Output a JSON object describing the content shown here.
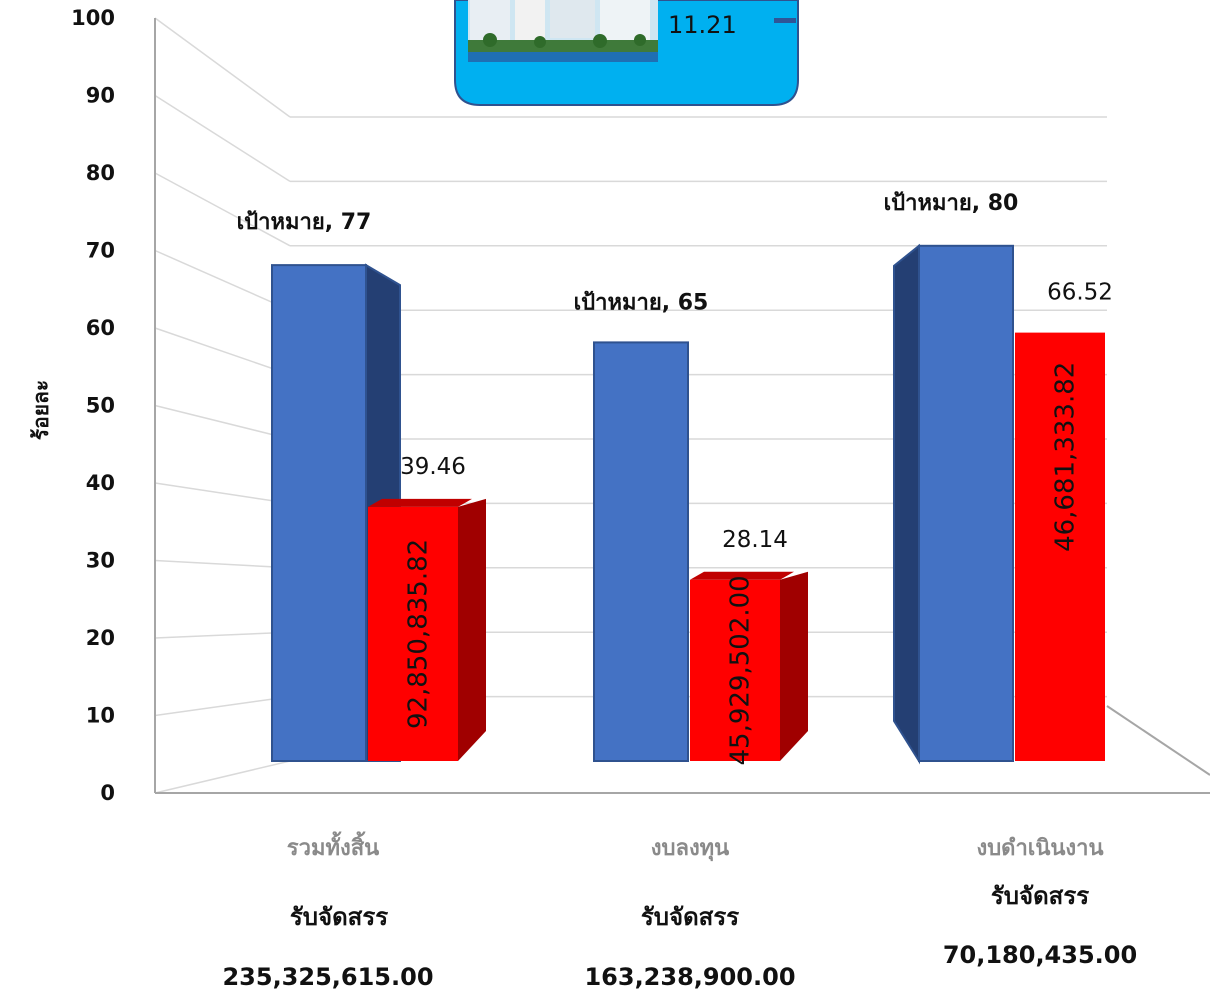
{
  "chart_data": {
    "type": "bar",
    "ylabel": "ร้อยละ",
    "ylim": [
      0,
      100
    ],
    "yticks": [
      0,
      10,
      20,
      30,
      40,
      50,
      60,
      70,
      80,
      90,
      100
    ],
    "categories": [
      "รวมทั้งสิ้น",
      "งบลงทุน",
      "งบดำเนินงาน"
    ],
    "series": [
      {
        "values": [
          77,
          65,
          80
        ],
        "color": "#4472C4"
      },
      {
        "values": [
          39.46,
          28.14,
          66.52
        ],
        "color": "#FF0000"
      }
    ],
    "target_labels": [
      "เป้าหมาย, 77",
      "เป้าหมาย, 65",
      "เป้าหมาย, 80"
    ],
    "value_labels": [
      "39.46",
      "28.14",
      "66.52"
    ],
    "disbursed_amounts": [
      "92,850,835.82",
      "45,929,502.00",
      "46,681,333.82"
    ],
    "allocation_label": "รับจัดสรร",
    "allocations": [
      "235,325,615.00",
      "163,238,900.00",
      "70,180,435.00"
    ],
    "legend_value": "11.21",
    "grid": true
  }
}
